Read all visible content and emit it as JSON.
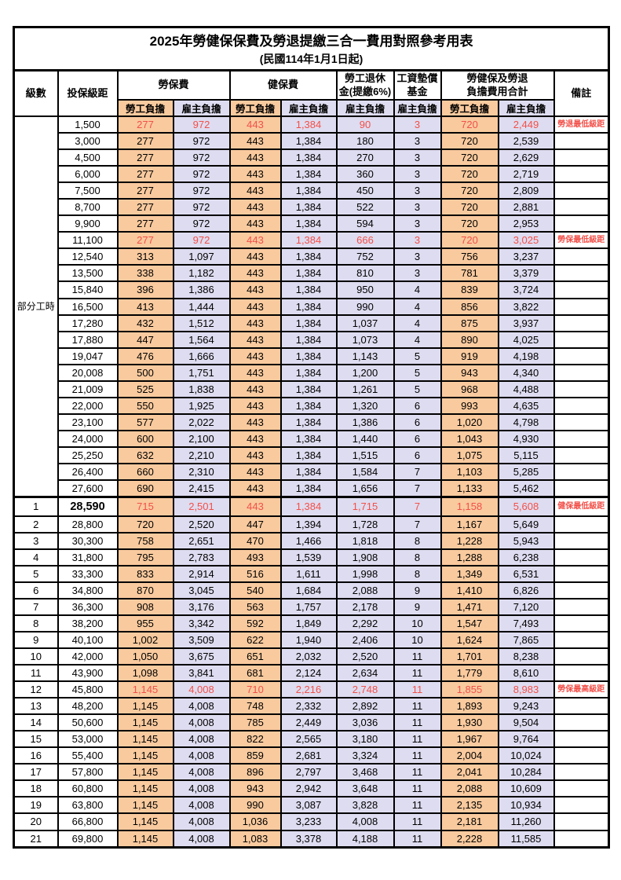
{
  "title": "2025年勞健保保費及勞退提繳三合一費用對照參考用表",
  "subtitle": "(民國114年1月1日起)",
  "header": {
    "level": "級數",
    "salary": "投保級距",
    "labor_insurance": "勞保費",
    "health_insurance": "健保費",
    "pension_line1": "勞工退休",
    "pension_line2": "金(提繳6%)",
    "wage_fund_line1": "工資墊償",
    "wage_fund_line2": "基金",
    "total_line1": "勞健保及勞退",
    "total_line2": "負擔費用合計",
    "employee": "勞工負擔",
    "employer": "雇主負擔",
    "note": "備註"
  },
  "partial_time_label": "部分工時",
  "colors": {
    "employee_bg": "#F9CA9E",
    "employer_bg": "#DEDCF0",
    "highlight_red": "#F25049"
  },
  "rows": [
    {
      "level": "",
      "salary": "1,500",
      "values": [
        "277",
        "972",
        "443",
        "1,384",
        "90",
        "3",
        "720",
        "2,449"
      ],
      "note": "勞退最低級距",
      "highlight": true
    },
    {
      "level": "",
      "salary": "3,000",
      "values": [
        "277",
        "972",
        "443",
        "1,384",
        "180",
        "3",
        "720",
        "2,539"
      ],
      "note": ""
    },
    {
      "level": "",
      "salary": "4,500",
      "values": [
        "277",
        "972",
        "443",
        "1,384",
        "270",
        "3",
        "720",
        "2,629"
      ],
      "note": ""
    },
    {
      "level": "",
      "salary": "6,000",
      "values": [
        "277",
        "972",
        "443",
        "1,384",
        "360",
        "3",
        "720",
        "2,719"
      ],
      "note": ""
    },
    {
      "level": "",
      "salary": "7,500",
      "values": [
        "277",
        "972",
        "443",
        "1,384",
        "450",
        "3",
        "720",
        "2,809"
      ],
      "note": ""
    },
    {
      "level": "",
      "salary": "8,700",
      "values": [
        "277",
        "972",
        "443",
        "1,384",
        "522",
        "3",
        "720",
        "2,881"
      ],
      "note": ""
    },
    {
      "level": "",
      "salary": "9,900",
      "values": [
        "277",
        "972",
        "443",
        "1,384",
        "594",
        "3",
        "720",
        "2,953"
      ],
      "note": ""
    },
    {
      "level": "",
      "salary": "11,100",
      "values": [
        "277",
        "972",
        "443",
        "1,384",
        "666",
        "3",
        "720",
        "3,025"
      ],
      "note": "勞保最低級距",
      "highlight": true
    },
    {
      "level": "",
      "salary": "12,540",
      "values": [
        "313",
        "1,097",
        "443",
        "1,384",
        "752",
        "3",
        "756",
        "3,237"
      ],
      "note": ""
    },
    {
      "level": "",
      "salary": "13,500",
      "values": [
        "338",
        "1,182",
        "443",
        "1,384",
        "810",
        "3",
        "781",
        "3,379"
      ],
      "note": ""
    },
    {
      "level": "",
      "salary": "15,840",
      "values": [
        "396",
        "1,386",
        "443",
        "1,384",
        "950",
        "4",
        "839",
        "3,724"
      ],
      "note": ""
    },
    {
      "level": "",
      "salary": "16,500",
      "values": [
        "413",
        "1,444",
        "443",
        "1,384",
        "990",
        "4",
        "856",
        "3,822"
      ],
      "note": ""
    },
    {
      "level": "",
      "salary": "17,280",
      "values": [
        "432",
        "1,512",
        "443",
        "1,384",
        "1,037",
        "4",
        "875",
        "3,937"
      ],
      "note": ""
    },
    {
      "level": "",
      "salary": "17,880",
      "values": [
        "447",
        "1,564",
        "443",
        "1,384",
        "1,073",
        "4",
        "890",
        "4,025"
      ],
      "note": ""
    },
    {
      "level": "",
      "salary": "19,047",
      "values": [
        "476",
        "1,666",
        "443",
        "1,384",
        "1,143",
        "5",
        "919",
        "4,198"
      ],
      "note": ""
    },
    {
      "level": "",
      "salary": "20,008",
      "values": [
        "500",
        "1,751",
        "443",
        "1,384",
        "1,200",
        "5",
        "943",
        "4,340"
      ],
      "note": ""
    },
    {
      "level": "",
      "salary": "21,009",
      "values": [
        "525",
        "1,838",
        "443",
        "1,384",
        "1,261",
        "5",
        "968",
        "4,488"
      ],
      "note": ""
    },
    {
      "level": "",
      "salary": "22,000",
      "values": [
        "550",
        "1,925",
        "443",
        "1,384",
        "1,320",
        "6",
        "993",
        "4,635"
      ],
      "note": ""
    },
    {
      "level": "",
      "salary": "23,100",
      "values": [
        "577",
        "2,022",
        "443",
        "1,384",
        "1,386",
        "6",
        "1,020",
        "4,798"
      ],
      "note": ""
    },
    {
      "level": "",
      "salary": "24,000",
      "values": [
        "600",
        "2,100",
        "443",
        "1,384",
        "1,440",
        "6",
        "1,043",
        "4,930"
      ],
      "note": ""
    },
    {
      "level": "",
      "salary": "25,250",
      "values": [
        "632",
        "2,210",
        "443",
        "1,384",
        "1,515",
        "6",
        "1,075",
        "5,115"
      ],
      "note": ""
    },
    {
      "level": "",
      "salary": "26,400",
      "values": [
        "660",
        "2,310",
        "443",
        "1,384",
        "1,584",
        "7",
        "1,103",
        "5,285"
      ],
      "note": ""
    },
    {
      "level": "",
      "salary": "27,600",
      "values": [
        "690",
        "2,415",
        "443",
        "1,384",
        "1,656",
        "7",
        "1,133",
        "5,462"
      ],
      "note": ""
    },
    {
      "level": "1",
      "salary": "28,590",
      "values": [
        "715",
        "2,501",
        "443",
        "1,384",
        "1,715",
        "7",
        "1,158",
        "5,608"
      ],
      "note": "健保最低級距",
      "highlight": true,
      "salary_bold": true
    },
    {
      "level": "2",
      "salary": "28,800",
      "values": [
        "720",
        "2,520",
        "447",
        "1,394",
        "1,728",
        "7",
        "1,167",
        "5,649"
      ],
      "note": ""
    },
    {
      "level": "3",
      "salary": "30,300",
      "values": [
        "758",
        "2,651",
        "470",
        "1,466",
        "1,818",
        "8",
        "1,228",
        "5,943"
      ],
      "note": ""
    },
    {
      "level": "4",
      "salary": "31,800",
      "values": [
        "795",
        "2,783",
        "493",
        "1,539",
        "1,908",
        "8",
        "1,288",
        "6,238"
      ],
      "note": ""
    },
    {
      "level": "5",
      "salary": "33,300",
      "values": [
        "833",
        "2,914",
        "516",
        "1,611",
        "1,998",
        "8",
        "1,349",
        "6,531"
      ],
      "note": ""
    },
    {
      "level": "6",
      "salary": "34,800",
      "values": [
        "870",
        "3,045",
        "540",
        "1,684",
        "2,088",
        "9",
        "1,410",
        "6,826"
      ],
      "note": ""
    },
    {
      "level": "7",
      "salary": "36,300",
      "values": [
        "908",
        "3,176",
        "563",
        "1,757",
        "2,178",
        "9",
        "1,471",
        "7,120"
      ],
      "note": ""
    },
    {
      "level": "8",
      "salary": "38,200",
      "values": [
        "955",
        "3,342",
        "592",
        "1,849",
        "2,292",
        "10",
        "1,547",
        "7,493"
      ],
      "note": ""
    },
    {
      "level": "9",
      "salary": "40,100",
      "values": [
        "1,002",
        "3,509",
        "622",
        "1,940",
        "2,406",
        "10",
        "1,624",
        "7,865"
      ],
      "note": ""
    },
    {
      "level": "10",
      "salary": "42,000",
      "values": [
        "1,050",
        "3,675",
        "651",
        "2,032",
        "2,520",
        "11",
        "1,701",
        "8,238"
      ],
      "note": ""
    },
    {
      "level": "11",
      "salary": "43,900",
      "values": [
        "1,098",
        "3,841",
        "681",
        "2,124",
        "2,634",
        "11",
        "1,779",
        "8,610"
      ],
      "note": ""
    },
    {
      "level": "12",
      "salary": "45,800",
      "values": [
        "1,145",
        "4,008",
        "710",
        "2,216",
        "2,748",
        "11",
        "1,855",
        "8,983"
      ],
      "note": "勞保最高級距",
      "highlight": true
    },
    {
      "level": "13",
      "salary": "48,200",
      "values": [
        "1,145",
        "4,008",
        "748",
        "2,332",
        "2,892",
        "11",
        "1,893",
        "9,243"
      ],
      "note": ""
    },
    {
      "level": "14",
      "salary": "50,600",
      "values": [
        "1,145",
        "4,008",
        "785",
        "2,449",
        "3,036",
        "11",
        "1,930",
        "9,504"
      ],
      "note": ""
    },
    {
      "level": "15",
      "salary": "53,000",
      "values": [
        "1,145",
        "4,008",
        "822",
        "2,565",
        "3,180",
        "11",
        "1,967",
        "9,764"
      ],
      "note": ""
    },
    {
      "level": "16",
      "salary": "55,400",
      "values": [
        "1,145",
        "4,008",
        "859",
        "2,681",
        "3,324",
        "11",
        "2,004",
        "10,024"
      ],
      "note": ""
    },
    {
      "level": "17",
      "salary": "57,800",
      "values": [
        "1,145",
        "4,008",
        "896",
        "2,797",
        "3,468",
        "11",
        "2,041",
        "10,284"
      ],
      "note": ""
    },
    {
      "level": "18",
      "salary": "60,800",
      "values": [
        "1,145",
        "4,008",
        "943",
        "2,942",
        "3,648",
        "11",
        "2,088",
        "10,609"
      ],
      "note": ""
    },
    {
      "level": "19",
      "salary": "63,800",
      "values": [
        "1,145",
        "4,008",
        "990",
        "3,087",
        "3,828",
        "11",
        "2,135",
        "10,934"
      ],
      "note": ""
    },
    {
      "level": "20",
      "salary": "66,800",
      "values": [
        "1,145",
        "4,008",
        "1,036",
        "3,233",
        "4,008",
        "11",
        "2,181",
        "11,260"
      ],
      "note": ""
    },
    {
      "level": "21",
      "salary": "69,800",
      "values": [
        "1,145",
        "4,008",
        "1,083",
        "3,378",
        "4,188",
        "11",
        "2,228",
        "11,585"
      ],
      "note": ""
    }
  ]
}
